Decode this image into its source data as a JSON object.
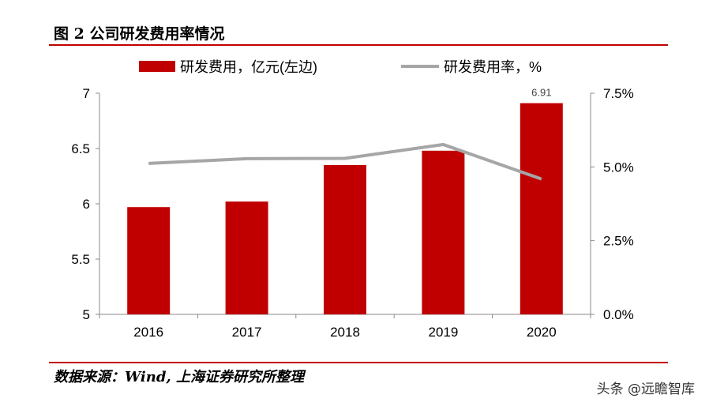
{
  "title": "图 2 公司研发费用率情况",
  "source": "数据来源：Wind, 上海证券研究所整理",
  "watermark": "头条 @远瞻智库",
  "chart_data": {
    "type": "bar+line",
    "categories": [
      "2016",
      "2017",
      "2018",
      "2019",
      "2020"
    ],
    "series": [
      {
        "name": "研发费用，亿元(左边)",
        "type": "bar",
        "axis": "left",
        "color": "#c00000",
        "values": [
          5.97,
          6.02,
          6.35,
          6.48,
          6.91
        ]
      },
      {
        "name": "研发费用率，%",
        "type": "line",
        "axis": "right",
        "color": "#a6a6a6",
        "values": [
          5.12,
          5.28,
          5.29,
          5.76,
          4.59
        ]
      }
    ],
    "data_labels": [
      {
        "category": "2020",
        "text": "6.91"
      }
    ],
    "left_axis": {
      "range": [
        5,
        7
      ],
      "ticks": [
        "5",
        "5.5",
        "6",
        "6.5",
        "7"
      ]
    },
    "right_axis": {
      "range": [
        0,
        7.5
      ],
      "ticks": [
        "0.0%",
        "2.5%",
        "5.0%",
        "7.5%"
      ]
    },
    "legend_position": "top",
    "grid": false
  }
}
